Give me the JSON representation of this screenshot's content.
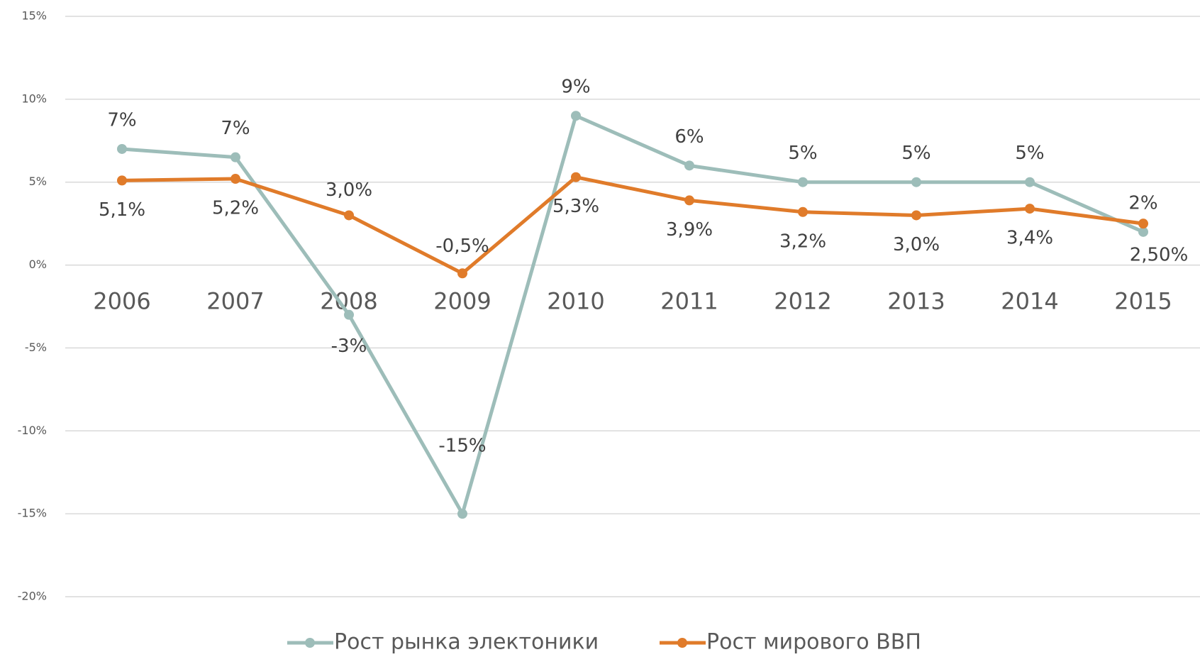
{
  "chart_data": {
    "type": "line",
    "categories": [
      "2006",
      "2007",
      "2008",
      "2009",
      "2010",
      "2011",
      "2012",
      "2013",
      "2014",
      "2015"
    ],
    "series": [
      {
        "name": "Рост рынка электоники",
        "color": "#9dbdb9",
        "values": [
          7,
          6.5,
          -3,
          -15,
          9,
          6,
          5,
          5,
          5,
          2
        ],
        "value_labels": [
          "7%",
          "7%",
          "-3%",
          "-15%",
          "9%",
          "6%",
          "5%",
          "5%",
          "5%",
          "2%"
        ]
      },
      {
        "name": "Рост мирового ВВП",
        "color": "#e07b2a",
        "values": [
          5.1,
          5.2,
          3.0,
          -0.5,
          5.3,
          3.9,
          3.2,
          3.0,
          3.4,
          2.5
        ],
        "value_labels": [
          "5,1%",
          "5,2%",
          "3,0%",
          "-0,5%",
          "5,3%",
          "3,9%",
          "3,2%",
          "3,0%",
          "3,4%",
          "2,50%"
        ]
      }
    ],
    "ylim": [
      -20,
      15
    ],
    "yticks": [
      {
        "value": -20,
        "label": "-20%"
      },
      {
        "value": -15,
        "label": "-15%"
      },
      {
        "value": -10,
        "label": "-10%"
      },
      {
        "value": -5,
        "label": "-5%"
      },
      {
        "value": 0,
        "label": "0%"
      },
      {
        "value": 5,
        "label": "5%"
      },
      {
        "value": 10,
        "label": "10%"
      },
      {
        "value": 15,
        "label": "15%"
      }
    ],
    "grid": true,
    "legend": "bottom"
  }
}
